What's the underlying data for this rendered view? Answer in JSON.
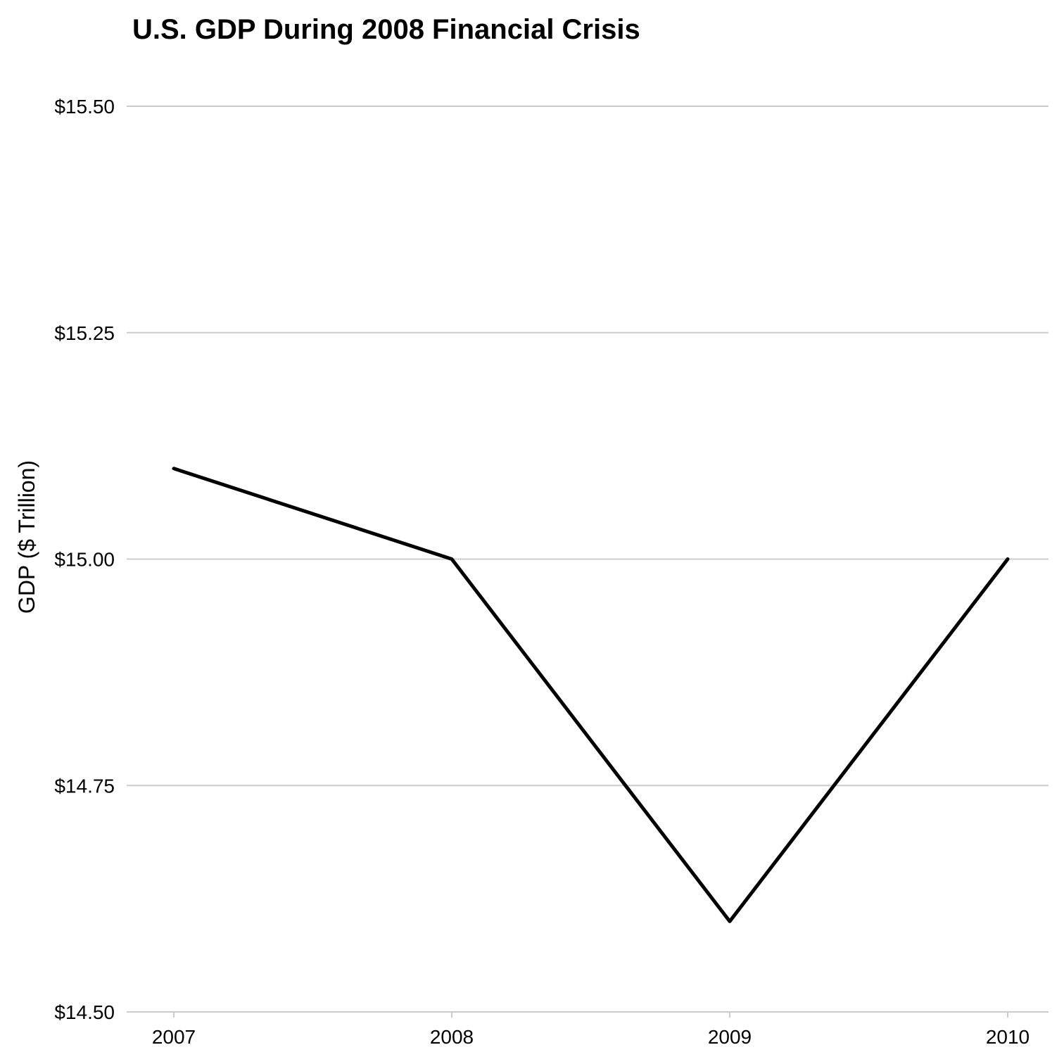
{
  "chart_data": {
    "type": "line",
    "title": "U.S. GDP During 2008 Financial Crisis",
    "xlabel": "",
    "ylabel": "GDP ($ Trillion)",
    "x": [
      2007,
      2008,
      2009,
      2010
    ],
    "x_tick_labels": [
      "2007",
      "2008",
      "2009",
      "2010"
    ],
    "series": [
      {
        "values": [
          15.1,
          15.0,
          14.6,
          15.0
        ],
        "color": "#000000"
      }
    ],
    "ylim": [
      14.5,
      15.5
    ],
    "y_ticks": [
      14.5,
      14.75,
      15.0,
      15.25,
      15.5
    ],
    "y_tick_labels": [
      "$14.50",
      "$14.75",
      "$15.00",
      "$15.25",
      "$15.50"
    ],
    "grid": "horizontal",
    "legend": "none"
  }
}
